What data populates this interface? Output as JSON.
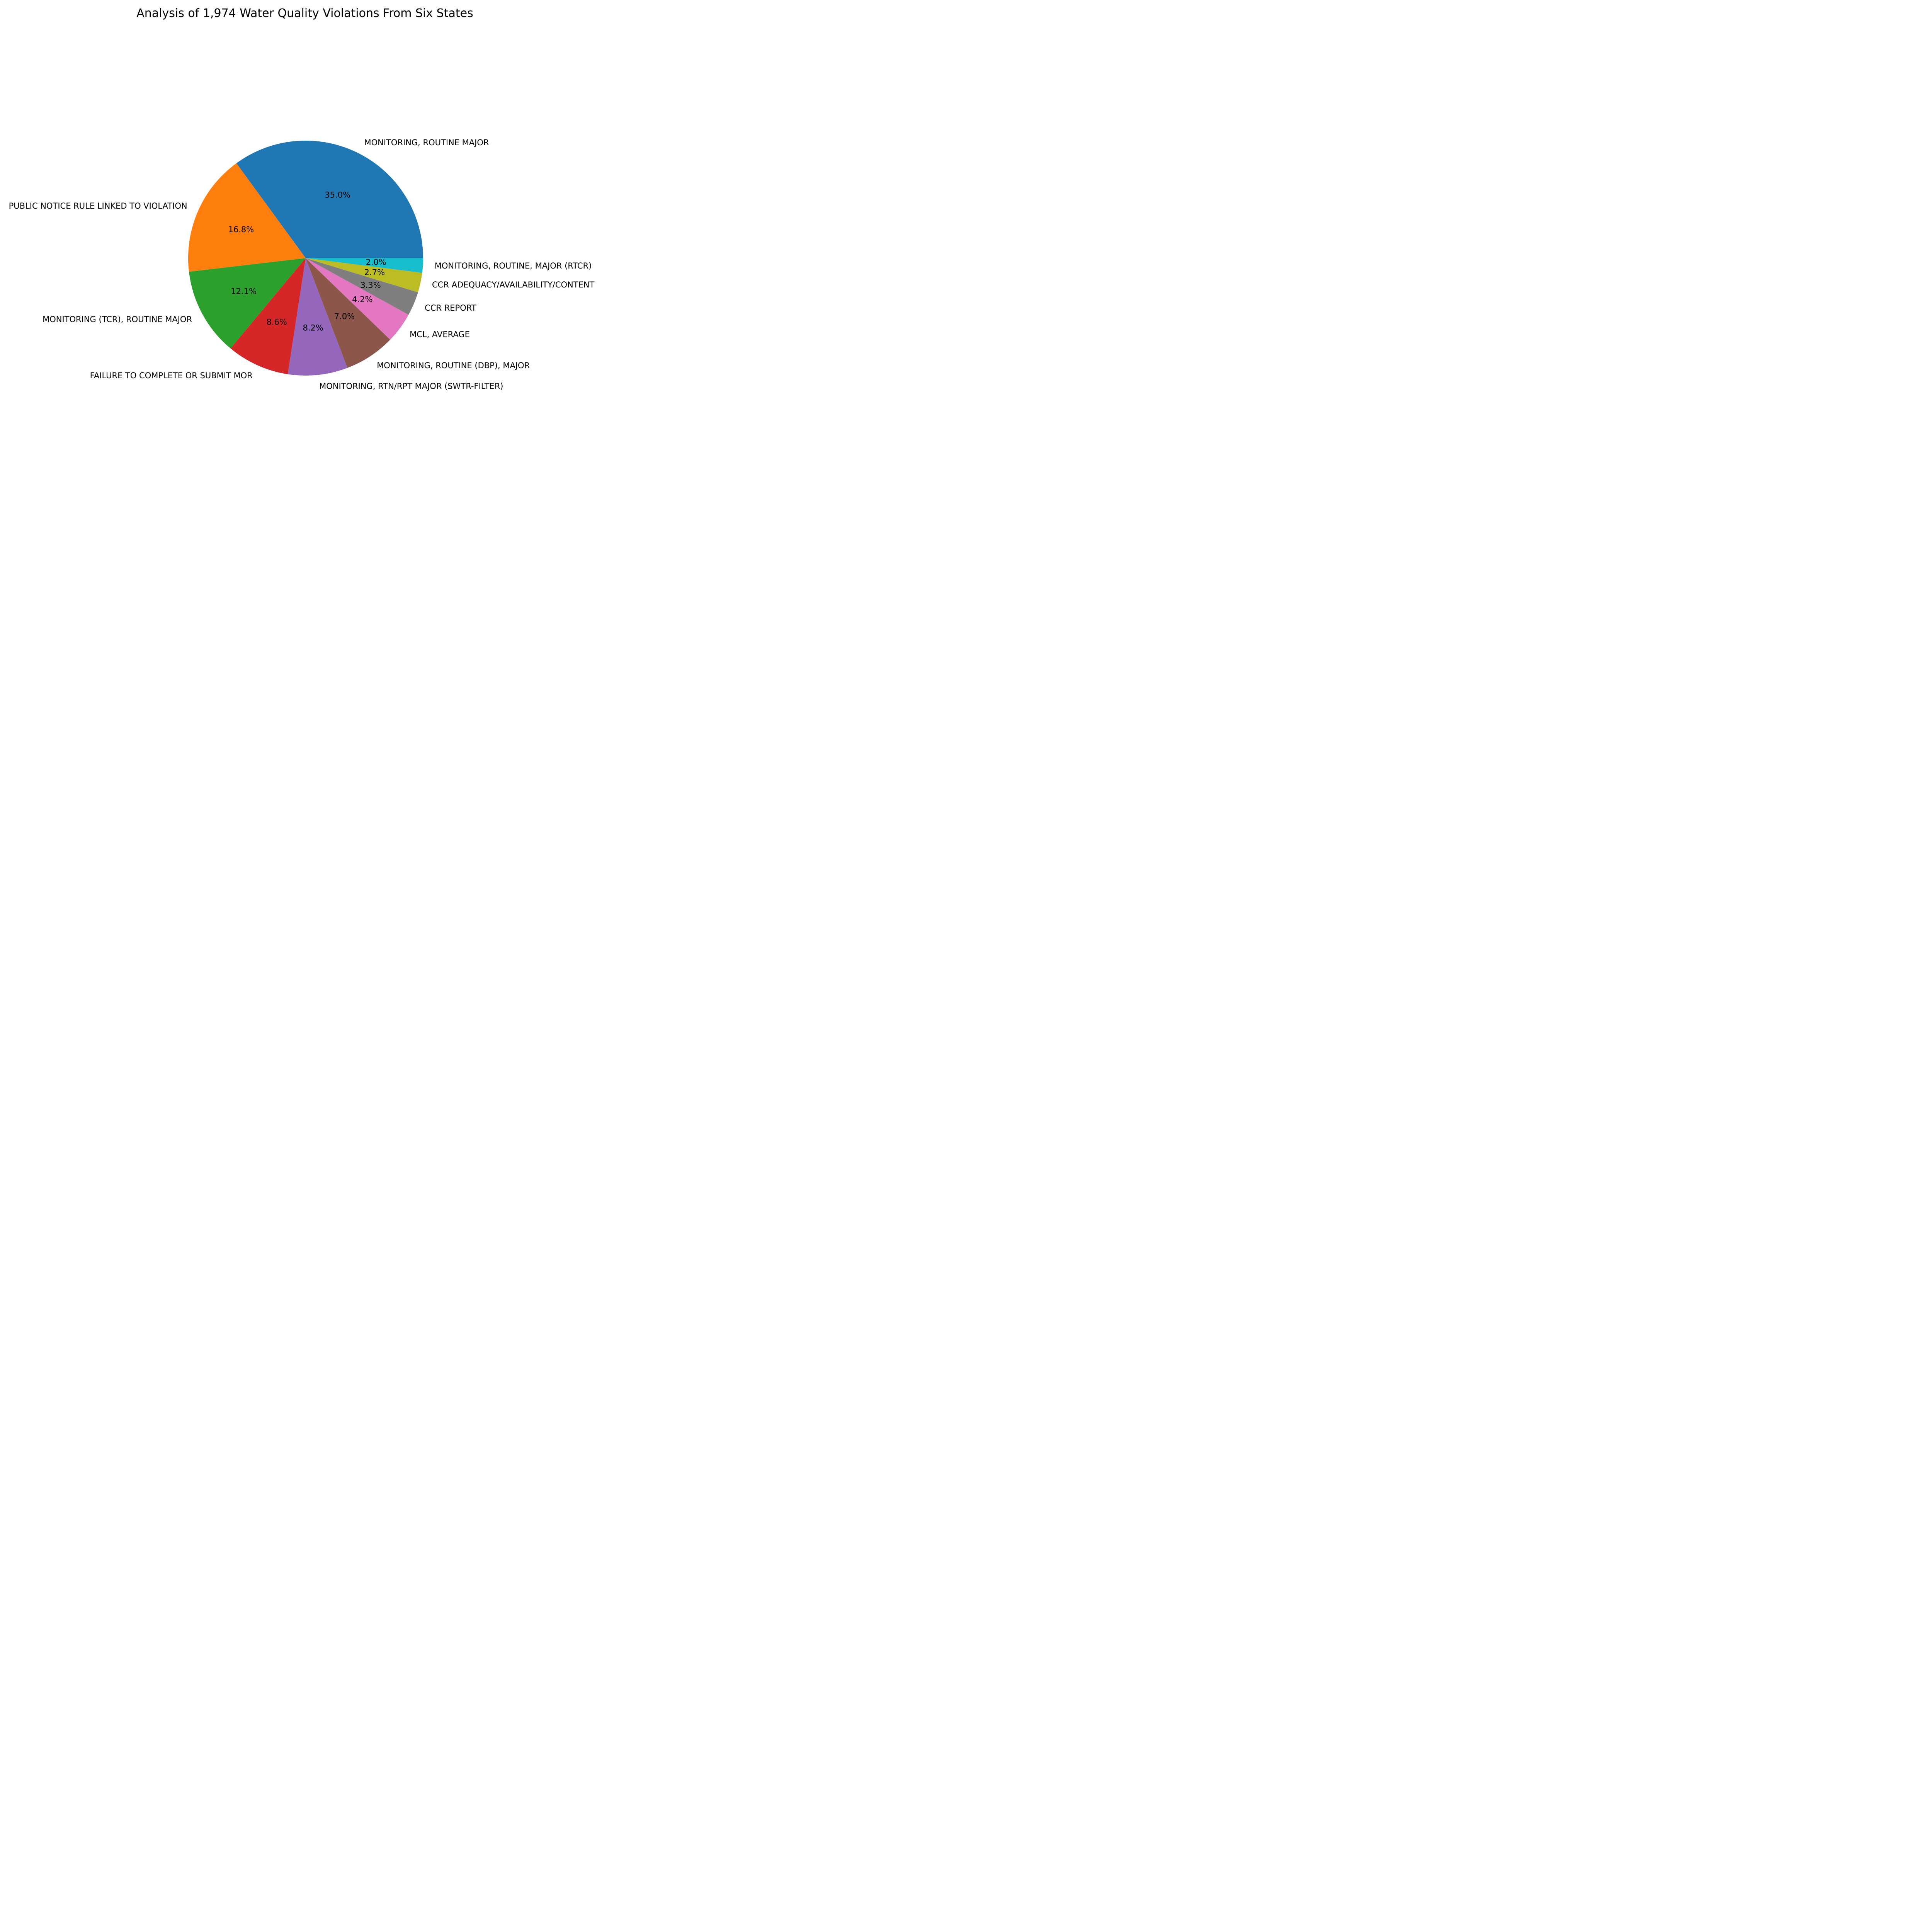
{
  "chart_data": {
    "type": "pie",
    "title": "Analysis of 1,974 Water Quality Violations From Six States",
    "categories": [
      "MONITORING, ROUTINE MAJOR",
      "PUBLIC NOTICE RULE LINKED TO VIOLATION",
      "MONITORING (TCR), ROUTINE MAJOR",
      "FAILURE TO COMPLETE OR SUBMIT MOR",
      "MONITORING, RTN/RPT MAJOR (SWTR-FILTER)",
      "MONITORING, ROUTINE (DBP), MAJOR",
      "MCL, AVERAGE",
      "CCR REPORT",
      "CCR ADEQUACY/AVAILABILITY/CONTENT",
      "MONITORING, ROUTINE, MAJOR (RTCR)"
    ],
    "values": [
      35.0,
      16.8,
      12.1,
      8.6,
      8.2,
      7.0,
      4.2,
      3.3,
      2.7,
      2.0
    ],
    "percent_labels": [
      "35.0%",
      "16.8%",
      "12.1%",
      "8.6%",
      "8.2%",
      "7.0%",
      "4.2%",
      "3.3%",
      "2.7%",
      "2.0%"
    ],
    "colors": [
      "#1f77b4",
      "#ff7f0e",
      "#2ca02c",
      "#d62728",
      "#9467bd",
      "#8c564b",
      "#e377c2",
      "#7f7f7f",
      "#bcbd22",
      "#17becf"
    ],
    "start_angle_deg": 0,
    "direction": "counterclockwise"
  }
}
